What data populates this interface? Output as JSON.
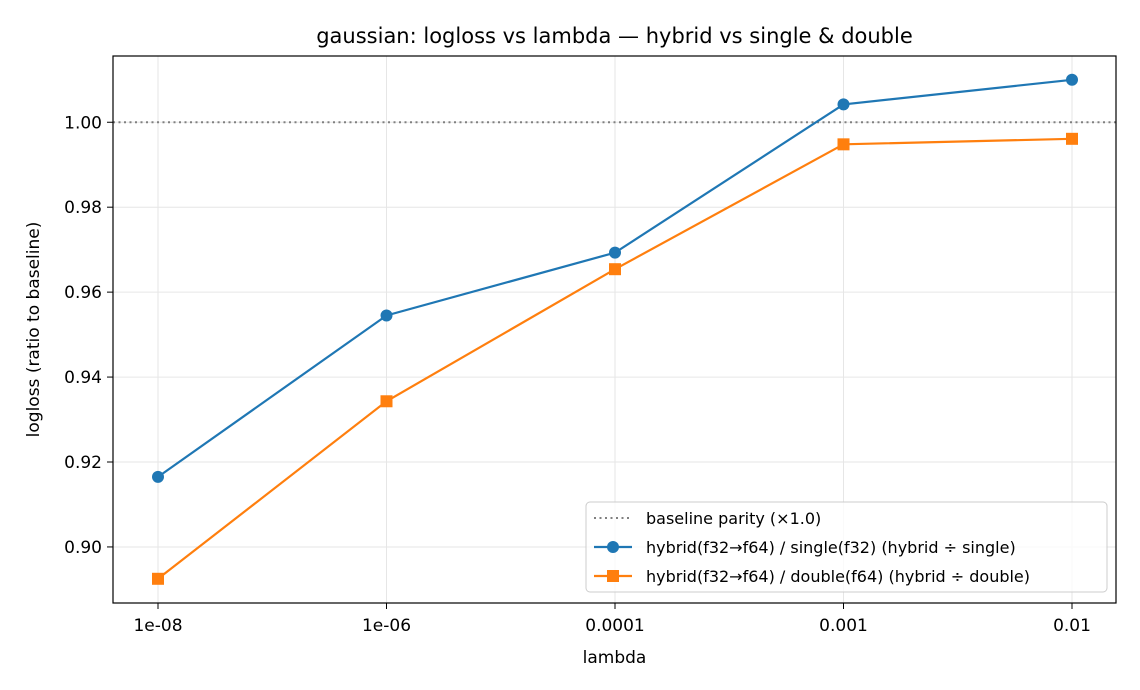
{
  "chart_data": {
    "type": "line",
    "title": "gaussian: logloss vs lambda — hybrid vs single & double",
    "xlabel": "lambda",
    "ylabel": "logloss (ratio to baseline)",
    "categories": [
      "1e-08",
      "1e-06",
      "0.0001",
      "0.001",
      "0.01"
    ],
    "ylim": [
      0.8868,
      1.0156
    ],
    "yticks": [
      0.9,
      0.92,
      0.94,
      0.96,
      0.98,
      1.0
    ],
    "ytick_labels": [
      "0.90",
      "0.92",
      "0.94",
      "0.96",
      "0.98",
      "1.00"
    ],
    "grid": true,
    "legend_position": "lower-right",
    "reference_line": {
      "label": "baseline parity (×1.0)",
      "y": 1.0,
      "color": "#808080",
      "style": "dotted"
    },
    "series": [
      {
        "name": "hybrid(f32→f64) / single(f32)  (hybrid ÷ single)",
        "values": [
          0.9165,
          0.9545,
          0.9693,
          1.0042,
          1.01
        ],
        "color": "#1f77b4",
        "marker": "circle"
      },
      {
        "name": "hybrid(f32→f64) / double(f64)  (hybrid ÷ double)",
        "values": [
          0.8925,
          0.9343,
          0.9654,
          0.9948,
          0.9961
        ],
        "color": "#ff7f0e",
        "marker": "square"
      }
    ]
  }
}
